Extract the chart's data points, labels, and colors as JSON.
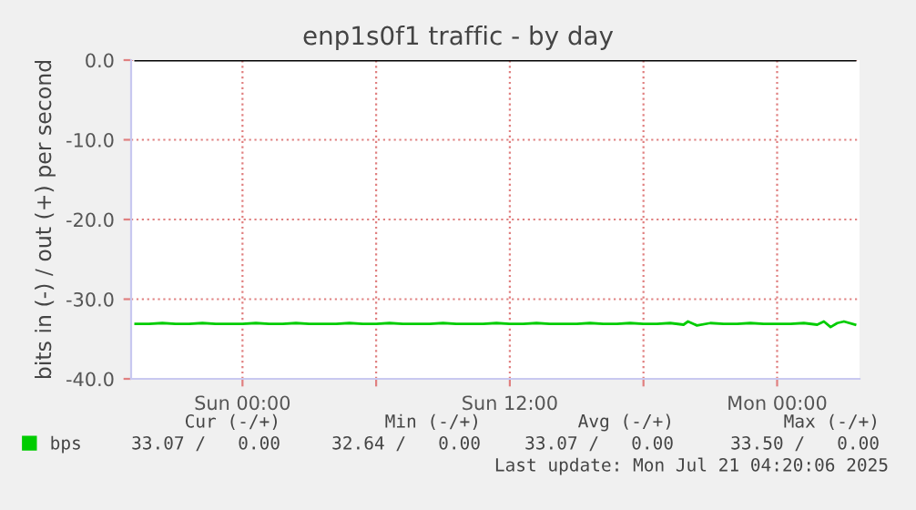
{
  "chart_data": {
    "type": "line",
    "title": "enp1s0f1 traffic - by day",
    "ylabel": "bits in (-) / out (+) per second",
    "x": [
      "2025-07-19T19:12",
      "2025-07-19T19:48",
      "2025-07-19T20:24",
      "2025-07-19T21:00",
      "2025-07-19T21:36",
      "2025-07-19T22:12",
      "2025-07-19T22:48",
      "2025-07-19T23:24",
      "2025-07-20T00:00",
      "2025-07-20T00:36",
      "2025-07-20T01:12",
      "2025-07-20T01:48",
      "2025-07-20T02:24",
      "2025-07-20T03:00",
      "2025-07-20T03:36",
      "2025-07-20T04:12",
      "2025-07-20T04:48",
      "2025-07-20T05:24",
      "2025-07-20T06:00",
      "2025-07-20T06:36",
      "2025-07-20T07:12",
      "2025-07-20T07:48",
      "2025-07-20T08:24",
      "2025-07-20T09:00",
      "2025-07-20T09:36",
      "2025-07-20T10:12",
      "2025-07-20T10:48",
      "2025-07-20T11:24",
      "2025-07-20T12:00",
      "2025-07-20T12:36",
      "2025-07-20T13:12",
      "2025-07-20T13:48",
      "2025-07-20T14:24",
      "2025-07-20T15:00",
      "2025-07-20T15:36",
      "2025-07-20T16:12",
      "2025-07-20T16:48",
      "2025-07-20T17:24",
      "2025-07-20T18:00",
      "2025-07-20T18:36",
      "2025-07-20T19:12",
      "2025-07-20T19:48",
      "2025-07-20T20:00",
      "2025-07-20T20:24",
      "2025-07-20T21:00",
      "2025-07-20T21:36",
      "2025-07-20T22:12",
      "2025-07-20T22:48",
      "2025-07-20T23:24",
      "2025-07-21T00:00",
      "2025-07-21T00:36",
      "2025-07-21T01:12",
      "2025-07-21T01:48",
      "2025-07-21T02:06",
      "2025-07-21T02:24",
      "2025-07-21T02:42",
      "2025-07-21T03:00",
      "2025-07-21T03:30"
    ],
    "series": [
      {
        "name": "bps",
        "color": "#00cc00",
        "values": [
          -33.1,
          -33.1,
          -33.0,
          -33.1,
          -33.1,
          -33.0,
          -33.1,
          -33.1,
          -33.1,
          -33.0,
          -33.1,
          -33.1,
          -33.0,
          -33.1,
          -33.1,
          -33.1,
          -33.0,
          -33.1,
          -33.1,
          -33.0,
          -33.1,
          -33.1,
          -33.1,
          -33.0,
          -33.1,
          -33.1,
          -33.1,
          -33.0,
          -33.1,
          -33.1,
          -33.0,
          -33.1,
          -33.1,
          -33.1,
          -33.0,
          -33.1,
          -33.1,
          -33.0,
          -33.1,
          -33.1,
          -33.0,
          -33.2,
          -32.8,
          -33.3,
          -33.0,
          -33.1,
          -33.1,
          -33.0,
          -33.1,
          -33.1,
          -33.1,
          -33.0,
          -33.2,
          -32.8,
          -33.5,
          -33.0,
          -32.8,
          -33.2
        ]
      },
      {
        "color": "#000000",
        "values": [
          0,
          0,
          0,
          0,
          0,
          0,
          0,
          0,
          0,
          0,
          0,
          0,
          0,
          0,
          0,
          0,
          0,
          0,
          0,
          0,
          0,
          0,
          0,
          0,
          0,
          0,
          0,
          0,
          0,
          0,
          0,
          0,
          0,
          0,
          0,
          0,
          0,
          0,
          0,
          0,
          0,
          0,
          0,
          0,
          0,
          0,
          0,
          0,
          0,
          0,
          0,
          0,
          0,
          0,
          0,
          0,
          0,
          0
        ]
      }
    ],
    "xlim": [
      "2025-07-19T19:00",
      "2025-07-21T03:42"
    ],
    "ylim": [
      -40,
      0
    ],
    "xticks": [
      {
        "value": "2025-07-20T00:00",
        "label": "Sun 00:00"
      },
      {
        "value": "2025-07-20T06:00",
        "label": null
      },
      {
        "value": "2025-07-20T12:00",
        "label": "Sun 12:00"
      },
      {
        "value": "2025-07-20T18:00",
        "label": null
      },
      {
        "value": "2025-07-21T00:00",
        "label": "Mon 00:00"
      }
    ],
    "yticks": [
      {
        "value": 0,
        "label": "0.0"
      },
      {
        "value": -10,
        "label": "-10.0"
      },
      {
        "value": -20,
        "label": "-20.0"
      },
      {
        "value": -30,
        "label": "-30.0"
      },
      {
        "value": -40,
        "label": "-40.0"
      }
    ],
    "grid": true,
    "legend": "bottom left",
    "marker": "none",
    "line_style": "solid",
    "annotations": [
      "Cur (-/+)",
      "Min (-/+)",
      "Avg (-/+)",
      "Max (-/+)",
      "33.07 /   0.00",
      "32.64 /   0.00",
      "33.07 /   0.00",
      "33.50 /   0.00",
      "Last update: Mon Jul 21 04:20:06 2025"
    ]
  }
}
